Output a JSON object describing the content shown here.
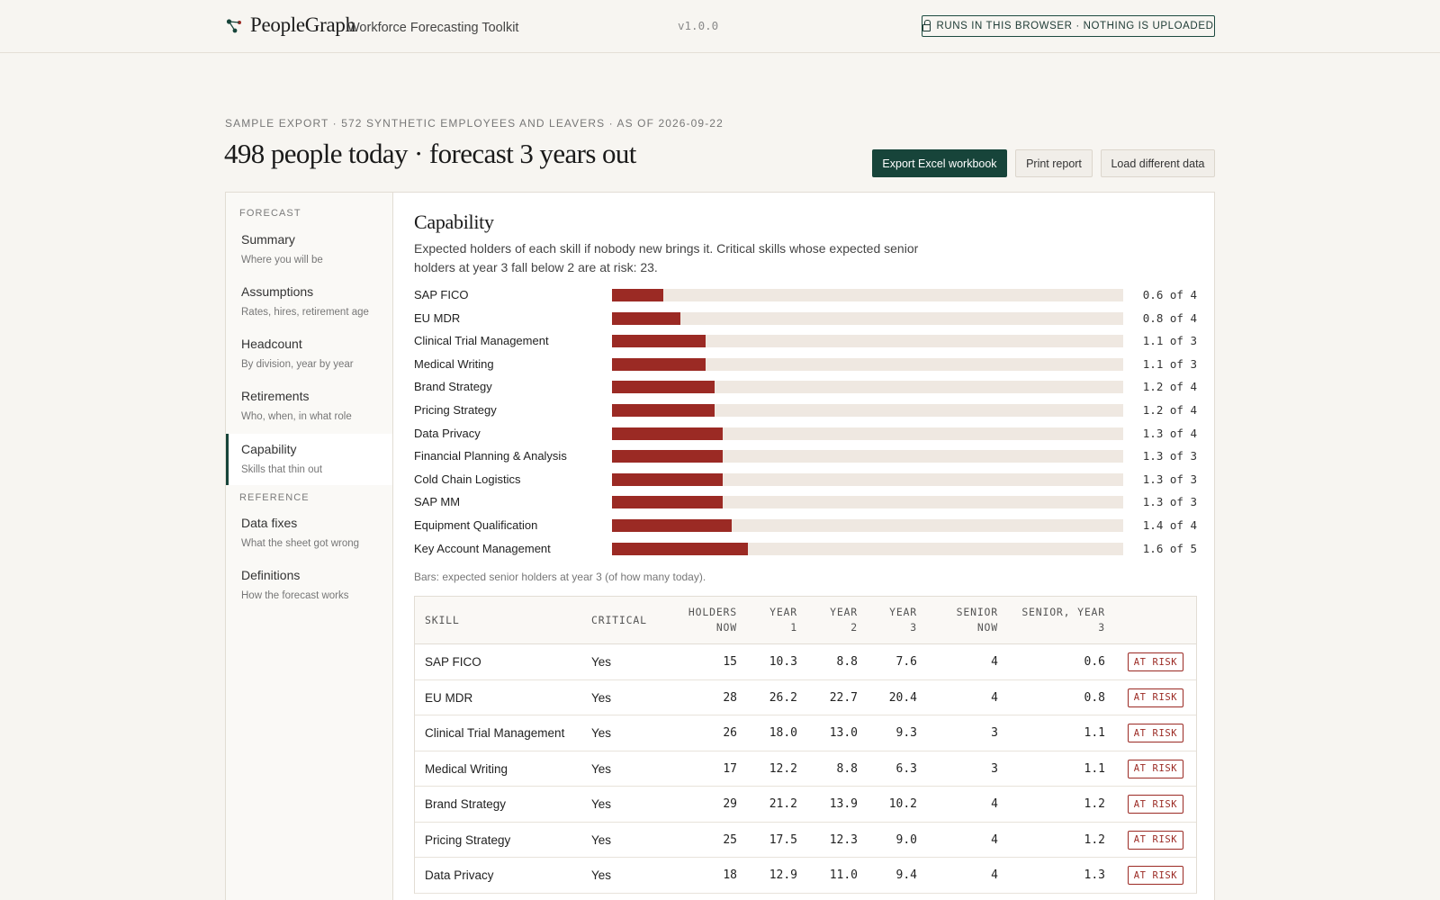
{
  "header": {
    "brand": "PeopleGraph",
    "tagline": "Workforce Forecasting Toolkit",
    "version": "v1.0.0",
    "privacy_badge": "RUNS IN THIS BROWSER · NOTHING IS UPLOADED"
  },
  "page": {
    "eyebrow": "SAMPLE EXPORT · 572 SYNTHETIC EMPLOYEES AND LEAVERS · AS OF 2026-09-22",
    "headline": "498 people today · forecast 3 years out",
    "buttons": {
      "export": "Export Excel workbook",
      "print": "Print report",
      "load": "Load different data"
    }
  },
  "sidebar": {
    "section_forecast": "FORECAST",
    "section_reference": "REFERENCE",
    "items": [
      {
        "title": "Summary",
        "sub": "Where you will be"
      },
      {
        "title": "Assumptions",
        "sub": "Rates, hires, retirement age"
      },
      {
        "title": "Headcount",
        "sub": "By division, year by year"
      },
      {
        "title": "Retirements",
        "sub": "Who, when, in what role"
      },
      {
        "title": "Capability",
        "sub": "Skills that thin out"
      },
      {
        "title": "Data fixes",
        "sub": "What the sheet got wrong"
      },
      {
        "title": "Definitions",
        "sub": "How the forecast works"
      }
    ],
    "active_index": 4
  },
  "capability": {
    "title": "Capability",
    "description": "Expected holders of each skill if nobody new brings it. Critical skills whose expected senior holders at year 3 fall below 2 are at risk: 23.",
    "bars_note": "Bars: expected senior holders at year 3 (of how many today).",
    "bars": [
      {
        "label": "SAP FICO",
        "value": 0.6,
        "of": 4,
        "text": "0.6 of 4"
      },
      {
        "label": "EU MDR",
        "value": 0.8,
        "of": 4,
        "text": "0.8 of 4"
      },
      {
        "label": "Clinical Trial Management",
        "value": 1.1,
        "of": 3,
        "text": "1.1 of 3"
      },
      {
        "label": "Medical Writing",
        "value": 1.1,
        "of": 3,
        "text": "1.1 of 3"
      },
      {
        "label": "Brand Strategy",
        "value": 1.2,
        "of": 4,
        "text": "1.2 of 4"
      },
      {
        "label": "Pricing Strategy",
        "value": 1.2,
        "of": 4,
        "text": "1.2 of 4"
      },
      {
        "label": "Data Privacy",
        "value": 1.3,
        "of": 4,
        "text": "1.3 of 4"
      },
      {
        "label": "Financial Planning & Analysis",
        "value": 1.3,
        "of": 3,
        "text": "1.3 of 3"
      },
      {
        "label": "Cold Chain Logistics",
        "value": 1.3,
        "of": 3,
        "text": "1.3 of 3"
      },
      {
        "label": "SAP MM",
        "value": 1.3,
        "of": 3,
        "text": "1.3 of 3"
      },
      {
        "label": "Equipment Qualification",
        "value": 1.4,
        "of": 4,
        "text": "1.4 of 4"
      },
      {
        "label": "Key Account Management",
        "value": 1.6,
        "of": 5,
        "text": "1.6 of 5"
      }
    ],
    "bar_scale_max": 6,
    "table": {
      "headers": {
        "skill": "SKILL",
        "critical": "CRITICAL",
        "holders_now": [
          "HOLDERS",
          "NOW"
        ],
        "year1": [
          "YEAR",
          "1"
        ],
        "year2": [
          "YEAR",
          "2"
        ],
        "year3": [
          "YEAR",
          "3"
        ],
        "senior_now": [
          "SENIOR",
          "NOW"
        ],
        "senior_year3": [
          "SENIOR, YEAR",
          "3"
        ]
      },
      "risk_label": "AT RISK",
      "rows": [
        {
          "skill": "SAP FICO",
          "critical": "Yes",
          "holders_now": "15",
          "y1": "10.3",
          "y2": "8.8",
          "y3": "7.6",
          "senior_now": "4",
          "senior_y3": "0.6"
        },
        {
          "skill": "EU MDR",
          "critical": "Yes",
          "holders_now": "28",
          "y1": "26.2",
          "y2": "22.7",
          "y3": "20.4",
          "senior_now": "4",
          "senior_y3": "0.8"
        },
        {
          "skill": "Clinical Trial Management",
          "critical": "Yes",
          "holders_now": "26",
          "y1": "18.0",
          "y2": "13.0",
          "y3": "9.3",
          "senior_now": "3",
          "senior_y3": "1.1"
        },
        {
          "skill": "Medical Writing",
          "critical": "Yes",
          "holders_now": "17",
          "y1": "12.2",
          "y2": "8.8",
          "y3": "6.3",
          "senior_now": "3",
          "senior_y3": "1.1"
        },
        {
          "skill": "Brand Strategy",
          "critical": "Yes",
          "holders_now": "29",
          "y1": "21.2",
          "y2": "13.9",
          "y3": "10.2",
          "senior_now": "4",
          "senior_y3": "1.2"
        },
        {
          "skill": "Pricing Strategy",
          "critical": "Yes",
          "holders_now": "25",
          "y1": "17.5",
          "y2": "12.3",
          "y3": "9.0",
          "senior_now": "4",
          "senior_y3": "1.2"
        },
        {
          "skill": "Data Privacy",
          "critical": "Yes",
          "holders_now": "18",
          "y1": "12.9",
          "y2": "11.0",
          "y3": "9.4",
          "senior_now": "4",
          "senior_y3": "1.3"
        }
      ]
    }
  },
  "colors": {
    "accent": "#17443a",
    "risk": "#9b2a24",
    "bar_track": "#efe8e1",
    "background": "#f7f5f1"
  }
}
